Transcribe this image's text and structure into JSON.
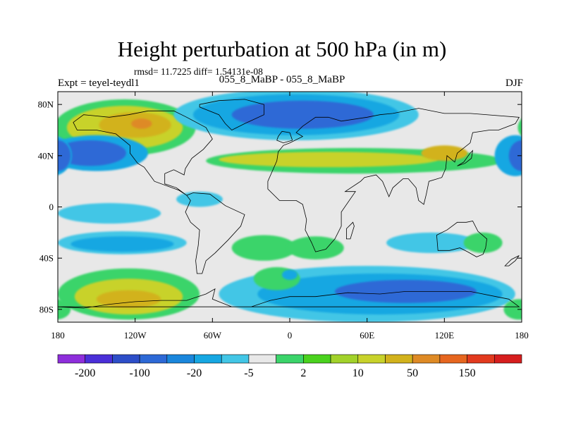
{
  "title": "Height perturbation at 500 hPa (in m)",
  "stats": "rmsd= 11.7225 diff= 1.54131e-08",
  "expt_label": "Expt = teyel-teydl1",
  "center_label": "055_8_MaBP - 055_8_MaBP",
  "season": "DJF",
  "map": {
    "lon_range": [
      -180,
      180
    ],
    "lat_range": [
      -90,
      90
    ],
    "lat_ticks": [
      {
        "lat": 80,
        "label": "80N"
      },
      {
        "lat": 40,
        "label": "40N"
      },
      {
        "lat": 0,
        "label": "0"
      },
      {
        "lat": -40,
        "label": "40S"
      },
      {
        "lat": -80,
        "label": "80S"
      }
    ],
    "lon_ticks": [
      {
        "lon": -180,
        "label": "180"
      },
      {
        "lon": -120,
        "label": "120W"
      },
      {
        "lon": -60,
        "label": "60W"
      },
      {
        "lon": 0,
        "label": "0"
      },
      {
        "lon": 60,
        "label": "60E"
      },
      {
        "lon": 120,
        "label": "120E"
      },
      {
        "lon": 180,
        "label": "180"
      }
    ],
    "background_color": "#e8e8e8",
    "regions": [
      {
        "name": "np-ridge-green",
        "color": "#3bd46a",
        "lon": -128,
        "lat": 62,
        "rlon": 55,
        "rlat": 22
      },
      {
        "name": "np-ridge-yellow",
        "color": "#c8d22b",
        "lon": -128,
        "lat": 62,
        "rlon": 45,
        "rlat": 17
      },
      {
        "name": "np-ridge-gold",
        "color": "#d2b21c",
        "lon": -120,
        "lat": 64,
        "rlon": 28,
        "rlat": 10
      },
      {
        "name": "np-ridge-orange",
        "color": "#de8a25",
        "lon": -115,
        "lat": 65,
        "rlon": 8,
        "rlat": 4
      },
      {
        "name": "nw-trough-blue",
        "color": "#16a7e2",
        "lon": -150,
        "lat": 42,
        "rlon": 40,
        "rlat": 14
      },
      {
        "name": "nw-trough-dark",
        "color": "#2d69d6",
        "lon": -155,
        "lat": 42,
        "rlon": 28,
        "rlat": 10
      },
      {
        "name": "arctic-trough-cyan",
        "color": "#42c6e6",
        "lon": 5,
        "lat": 72,
        "rlon": 95,
        "rlat": 20
      },
      {
        "name": "arctic-trough-blue",
        "color": "#16a7e2",
        "lon": 5,
        "lat": 72,
        "rlon": 80,
        "rlat": 16
      },
      {
        "name": "arctic-trough-dark",
        "color": "#2d69d6",
        "lon": 10,
        "lat": 72,
        "rlon": 55,
        "rlat": 11
      },
      {
        "name": "midlat-band-green",
        "color": "#3bd46a",
        "lon": 50,
        "lat": 36,
        "rlon": 115,
        "rlat": 10
      },
      {
        "name": "midlat-band-yellow",
        "color": "#c8d22b",
        "lon": 30,
        "lat": 37,
        "rlon": 85,
        "rlat": 6
      },
      {
        "name": "midlat-band-gold",
        "color": "#d2b21c",
        "lon": 120,
        "lat": 42,
        "rlon": 18,
        "rlat": 6
      },
      {
        "name": "ne-pacific-blue",
        "color": "#16a7e2",
        "lon": 175,
        "lat": 40,
        "rlon": 16,
        "rlat": 16
      },
      {
        "name": "ne-pacific-dark",
        "color": "#2d69d6",
        "lon": 180,
        "lat": 40,
        "rlon": 10,
        "rlat": 12
      },
      {
        "name": "tropic-cyan",
        "color": "#42c6e6",
        "lon": -140,
        "lat": -5,
        "rlon": 40,
        "rlat": 8
      },
      {
        "name": "tropic-cyan-2",
        "color": "#42c6e6",
        "lon": -70,
        "lat": 6,
        "rlon": 18,
        "rlat": 6
      },
      {
        "name": "sh-sub-cyan",
        "color": "#42c6e6",
        "lon": -130,
        "lat": -28,
        "rlon": 50,
        "rlat": 9
      },
      {
        "name": "sh-sub-blue",
        "color": "#16a7e2",
        "lon": -130,
        "lat": -29,
        "rlon": 40,
        "rlat": 6
      },
      {
        "name": "sh-green-1",
        "color": "#3bd46a",
        "lon": -20,
        "lat": -32,
        "rlon": 25,
        "rlat": 10
      },
      {
        "name": "sh-green-2",
        "color": "#3bd46a",
        "lon": 20,
        "lat": -32,
        "rlon": 22,
        "rlat": 9
      },
      {
        "name": "sh-cyan-east",
        "color": "#42c6e6",
        "lon": 110,
        "lat": -28,
        "rlon": 35,
        "rlat": 8
      },
      {
        "name": "sh-green-east",
        "color": "#3bd46a",
        "lon": 150,
        "lat": -28,
        "rlon": 15,
        "rlat": 8
      },
      {
        "name": "south-pacific-green",
        "color": "#3bd46a",
        "lon": -125,
        "lat": -68,
        "rlon": 55,
        "rlat": 20
      },
      {
        "name": "south-pacific-yellow",
        "color": "#c8d22b",
        "lon": -125,
        "lat": -70,
        "rlon": 42,
        "rlat": 14
      },
      {
        "name": "south-pacific-gold",
        "color": "#d2b21c",
        "lon": -125,
        "lat": -72,
        "rlon": 25,
        "rlat": 7
      },
      {
        "name": "southern-trough-cyan",
        "color": "#42c6e6",
        "lon": 60,
        "lat": -68,
        "rlon": 115,
        "rlat": 22
      },
      {
        "name": "southern-trough-blue",
        "color": "#16a7e2",
        "lon": 70,
        "lat": -68,
        "rlon": 95,
        "rlat": 16
      },
      {
        "name": "southern-trough-dark",
        "color": "#2d69d6",
        "lon": 90,
        "lat": -66,
        "rlon": 55,
        "rlat": 9
      },
      {
        "name": "south-atl-green",
        "color": "#3bd46a",
        "lon": -10,
        "lat": -56,
        "rlon": 18,
        "rlat": 9
      },
      {
        "name": "south-atl-blue",
        "color": "#16a7e2",
        "lon": 0,
        "lat": -53,
        "rlon": 6,
        "rlat": 4
      },
      {
        "name": "antarctic-green",
        "color": "#3bd46a",
        "lon": 178,
        "lat": -80,
        "rlon": 12,
        "rlat": 8
      }
    ],
    "coast_outlines": [
      {
        "name": "north-america",
        "points": [
          [
            -168,
            66
          ],
          [
            -160,
            72
          ],
          [
            -140,
            70
          ],
          [
            -125,
            72
          ],
          [
            -110,
            75
          ],
          [
            -90,
            75
          ],
          [
            -80,
            70
          ],
          [
            -65,
            62
          ],
          [
            -60,
            53
          ],
          [
            -67,
            45
          ],
          [
            -76,
            38
          ],
          [
            -81,
            30
          ],
          [
            -82,
            25
          ],
          [
            -90,
            29
          ],
          [
            -97,
            26
          ],
          [
            -97,
            18
          ],
          [
            -88,
            15
          ],
          [
            -80,
            9
          ],
          [
            -86,
            13
          ],
          [
            -105,
            20
          ],
          [
            -113,
            31
          ],
          [
            -118,
            34
          ],
          [
            -124,
            42
          ],
          [
            -124,
            48
          ],
          [
            -135,
            57
          ],
          [
            -150,
            60
          ],
          [
            -165,
            60
          ]
        ]
      },
      {
        "name": "greenland",
        "points": [
          [
            -70,
            80
          ],
          [
            -55,
            83
          ],
          [
            -35,
            84
          ],
          [
            -20,
            80
          ],
          [
            -20,
            72
          ],
          [
            -35,
            65
          ],
          [
            -45,
            60
          ],
          [
            -50,
            65
          ],
          [
            -55,
            72
          ],
          [
            -70,
            78
          ]
        ]
      },
      {
        "name": "south-america",
        "points": [
          [
            -80,
            9
          ],
          [
            -75,
            11
          ],
          [
            -62,
            10
          ],
          [
            -50,
            1
          ],
          [
            -35,
            -6
          ],
          [
            -38,
            -15
          ],
          [
            -48,
            -26
          ],
          [
            -58,
            -36
          ],
          [
            -65,
            -42
          ],
          [
            -68,
            -52
          ],
          [
            -72,
            -52
          ],
          [
            -73,
            -42
          ],
          [
            -71,
            -30
          ],
          [
            -70,
            -18
          ],
          [
            -77,
            -12
          ],
          [
            -81,
            -4
          ],
          [
            -77,
            5
          ]
        ]
      },
      {
        "name": "eurasia-africa",
        "points": [
          [
            -10,
            36
          ],
          [
            -17,
            20
          ],
          [
            -17,
            14
          ],
          [
            -8,
            5
          ],
          [
            5,
            5
          ],
          [
            10,
            2
          ],
          [
            13,
            -10
          ],
          [
            12,
            -18
          ],
          [
            17,
            -28
          ],
          [
            20,
            -35
          ],
          [
            28,
            -33
          ],
          [
            35,
            -25
          ],
          [
            40,
            -15
          ],
          [
            40,
            -4
          ],
          [
            51,
            12
          ],
          [
            43,
            12
          ],
          [
            55,
            20
          ],
          [
            58,
            23
          ],
          [
            67,
            25
          ],
          [
            72,
            20
          ],
          [
            77,
            8
          ],
          [
            80,
            15
          ],
          [
            88,
            22
          ],
          [
            92,
            22
          ],
          [
            98,
            15
          ],
          [
            100,
            5
          ],
          [
            104,
            2
          ],
          [
            106,
            10
          ],
          [
            108,
            20
          ],
          [
            118,
            23
          ],
          [
            121,
            30
          ],
          [
            122,
            40
          ],
          [
            128,
            35
          ],
          [
            130,
            42
          ],
          [
            140,
            50
          ],
          [
            142,
            58
          ],
          [
            155,
            60
          ],
          [
            162,
            60
          ],
          [
            175,
            65
          ],
          [
            178,
            70
          ],
          [
            140,
            73
          ],
          [
            120,
            73
          ],
          [
            100,
            77
          ],
          [
            80,
            73
          ],
          [
            70,
            72
          ],
          [
            60,
            70
          ],
          [
            40,
            67
          ],
          [
            30,
            70
          ],
          [
            20,
            70
          ],
          [
            10,
            63
          ],
          [
            5,
            58
          ],
          [
            10,
            55
          ],
          [
            0,
            50
          ],
          [
            -5,
            48
          ],
          [
            -9,
            43
          ]
        ]
      },
      {
        "name": "australia",
        "points": [
          [
            114,
            -22
          ],
          [
            122,
            -18
          ],
          [
            130,
            -12
          ],
          [
            137,
            -12
          ],
          [
            142,
            -11
          ],
          [
            146,
            -19
          ],
          [
            153,
            -25
          ],
          [
            152,
            -32
          ],
          [
            150,
            -37
          ],
          [
            145,
            -39
          ],
          [
            138,
            -35
          ],
          [
            132,
            -32
          ],
          [
            124,
            -34
          ],
          [
            115,
            -34
          ]
        ]
      },
      {
        "name": "antarctica",
        "points": [
          [
            -180,
            -78
          ],
          [
            -160,
            -79
          ],
          [
            -140,
            -76
          ],
          [
            -120,
            -74
          ],
          [
            -100,
            -73
          ],
          [
            -80,
            -73
          ],
          [
            -65,
            -68
          ],
          [
            -58,
            -64
          ],
          [
            -60,
            -72
          ],
          [
            -45,
            -78
          ],
          [
            -30,
            -78
          ],
          [
            -15,
            -73
          ],
          [
            0,
            -70
          ],
          [
            20,
            -70
          ],
          [
            45,
            -67
          ],
          [
            70,
            -68
          ],
          [
            90,
            -66
          ],
          [
            120,
            -66
          ],
          [
            140,
            -66
          ],
          [
            160,
            -70
          ],
          [
            170,
            -72
          ],
          [
            178,
            -78
          ]
        ]
      },
      {
        "name": "british-isles",
        "points": [
          [
            -10,
            52
          ],
          [
            -5,
            50
          ],
          [
            2,
            52
          ],
          [
            0,
            58
          ],
          [
            -6,
            59
          ],
          [
            -9,
            55
          ]
        ]
      },
      {
        "name": "madagascar",
        "points": [
          [
            44,
            -25
          ],
          [
            47,
            -25
          ],
          [
            50,
            -15
          ],
          [
            49,
            -12
          ],
          [
            44,
            -17
          ]
        ]
      },
      {
        "name": "japan",
        "points": [
          [
            130,
            32
          ],
          [
            136,
            34
          ],
          [
            141,
            38
          ],
          [
            142,
            44
          ],
          [
            140,
            42
          ],
          [
            135,
            35
          ]
        ]
      },
      {
        "name": "new-zealand",
        "points": [
          [
            167,
            -46
          ],
          [
            172,
            -41
          ],
          [
            178,
            -38
          ],
          [
            175,
            -42
          ],
          [
            170,
            -46
          ]
        ]
      }
    ]
  },
  "colorbar": {
    "labels": [
      {
        "index": 1,
        "text": "-200"
      },
      {
        "index": 3,
        "text": "-100"
      },
      {
        "index": 5,
        "text": "-20"
      },
      {
        "index": 7,
        "text": "-5"
      },
      {
        "index": 9,
        "text": "2"
      },
      {
        "index": 11,
        "text": "10"
      },
      {
        "index": 13,
        "text": "50"
      },
      {
        "index": 15,
        "text": "150"
      }
    ],
    "colors": [
      "#8e2edb",
      "#4a2fd8",
      "#2d4ec8",
      "#2d69d6",
      "#1a86dc",
      "#16a7e2",
      "#42c6e6",
      "#e8e8e8",
      "#3bd46a",
      "#4ad21e",
      "#a2d22a",
      "#c8d22b",
      "#d2b21c",
      "#de8a25",
      "#e6661f",
      "#e23a1e",
      "#d61e1e"
    ]
  }
}
